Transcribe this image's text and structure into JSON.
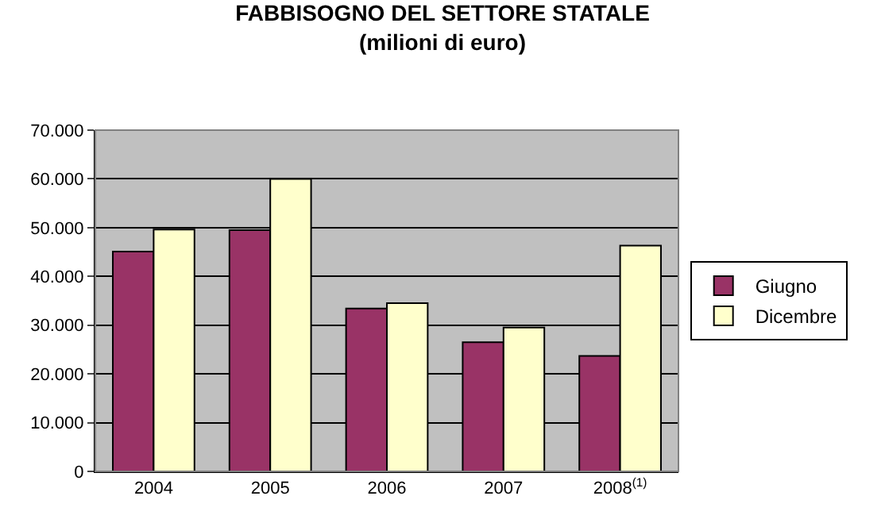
{
  "chart_data": {
    "type": "bar",
    "title": "FABBISOGNO DEL SETTORE STATALE",
    "subtitle": "(milioni di euro)",
    "categories": [
      "2004",
      "2005",
      "2006",
      "2007",
      "2008$^{(1)}$"
    ],
    "series": [
      {
        "name": "Giugno",
        "color": "#993366",
        "values": [
          45100,
          49500,
          33400,
          26500,
          23700
        ]
      },
      {
        "name": "Dicembre",
        "color": "#ffffcc",
        "values": [
          49600,
          60000,
          34500,
          29500,
          46300
        ]
      }
    ],
    "ylim": [
      0,
      70000
    ],
    "yticks": [
      {
        "value": 0,
        "label": "0"
      },
      {
        "value": 10000,
        "label": "10.000"
      },
      {
        "value": 20000,
        "label": "20.000"
      },
      {
        "value": 30000,
        "label": "30.000"
      },
      {
        "value": 40000,
        "label": "40.000"
      },
      {
        "value": 50000,
        "label": "50.000"
      },
      {
        "value": 60000,
        "label": "60.000"
      },
      {
        "value": 70000,
        "label": "70.000"
      }
    ],
    "grid": "y",
    "legend": "right"
  }
}
